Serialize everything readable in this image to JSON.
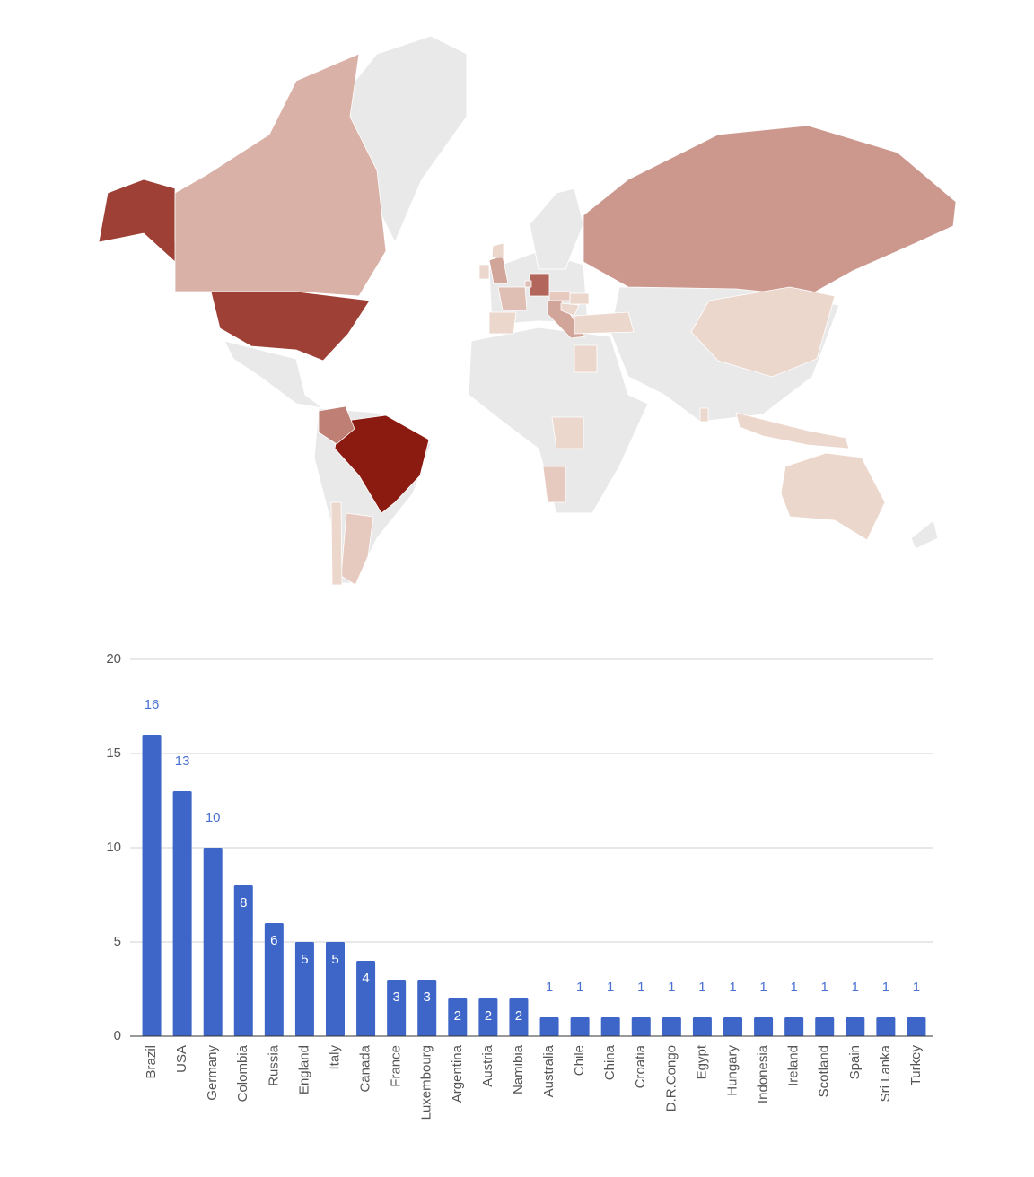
{
  "chart_data": [
    {
      "type": "geo",
      "color_axis": [
        "#ecd7cd",
        "#8b1a10"
      ],
      "no_data_color": "#e9e9e9"
    },
    {
      "type": "bar",
      "categories": [
        "Brazil",
        "USA",
        "Germany",
        "Colombia",
        "Russia",
        "England",
        "Italy",
        "Canada",
        "France",
        "Luxembourg",
        "Argentina",
        "Austria",
        "Namibia",
        "Australia",
        "Chile",
        "China",
        "Croatia",
        "D.R.Congo",
        "Egypt",
        "Hungary",
        "Indonesia",
        "Ireland",
        "Scotland",
        "Spain",
        "Sri Lanka",
        "Turkey"
      ],
      "values": [
        16,
        13,
        10,
        8,
        6,
        5,
        5,
        4,
        3,
        3,
        2,
        2,
        2,
        1,
        1,
        1,
        1,
        1,
        1,
        1,
        1,
        1,
        1,
        1,
        1,
        1
      ],
      "color": "#3d66c8",
      "label_color": "#4a70d2",
      "ylim": [
        0,
        20
      ],
      "yticks": [
        0,
        5,
        10,
        15,
        20
      ],
      "grid": true
    }
  ]
}
